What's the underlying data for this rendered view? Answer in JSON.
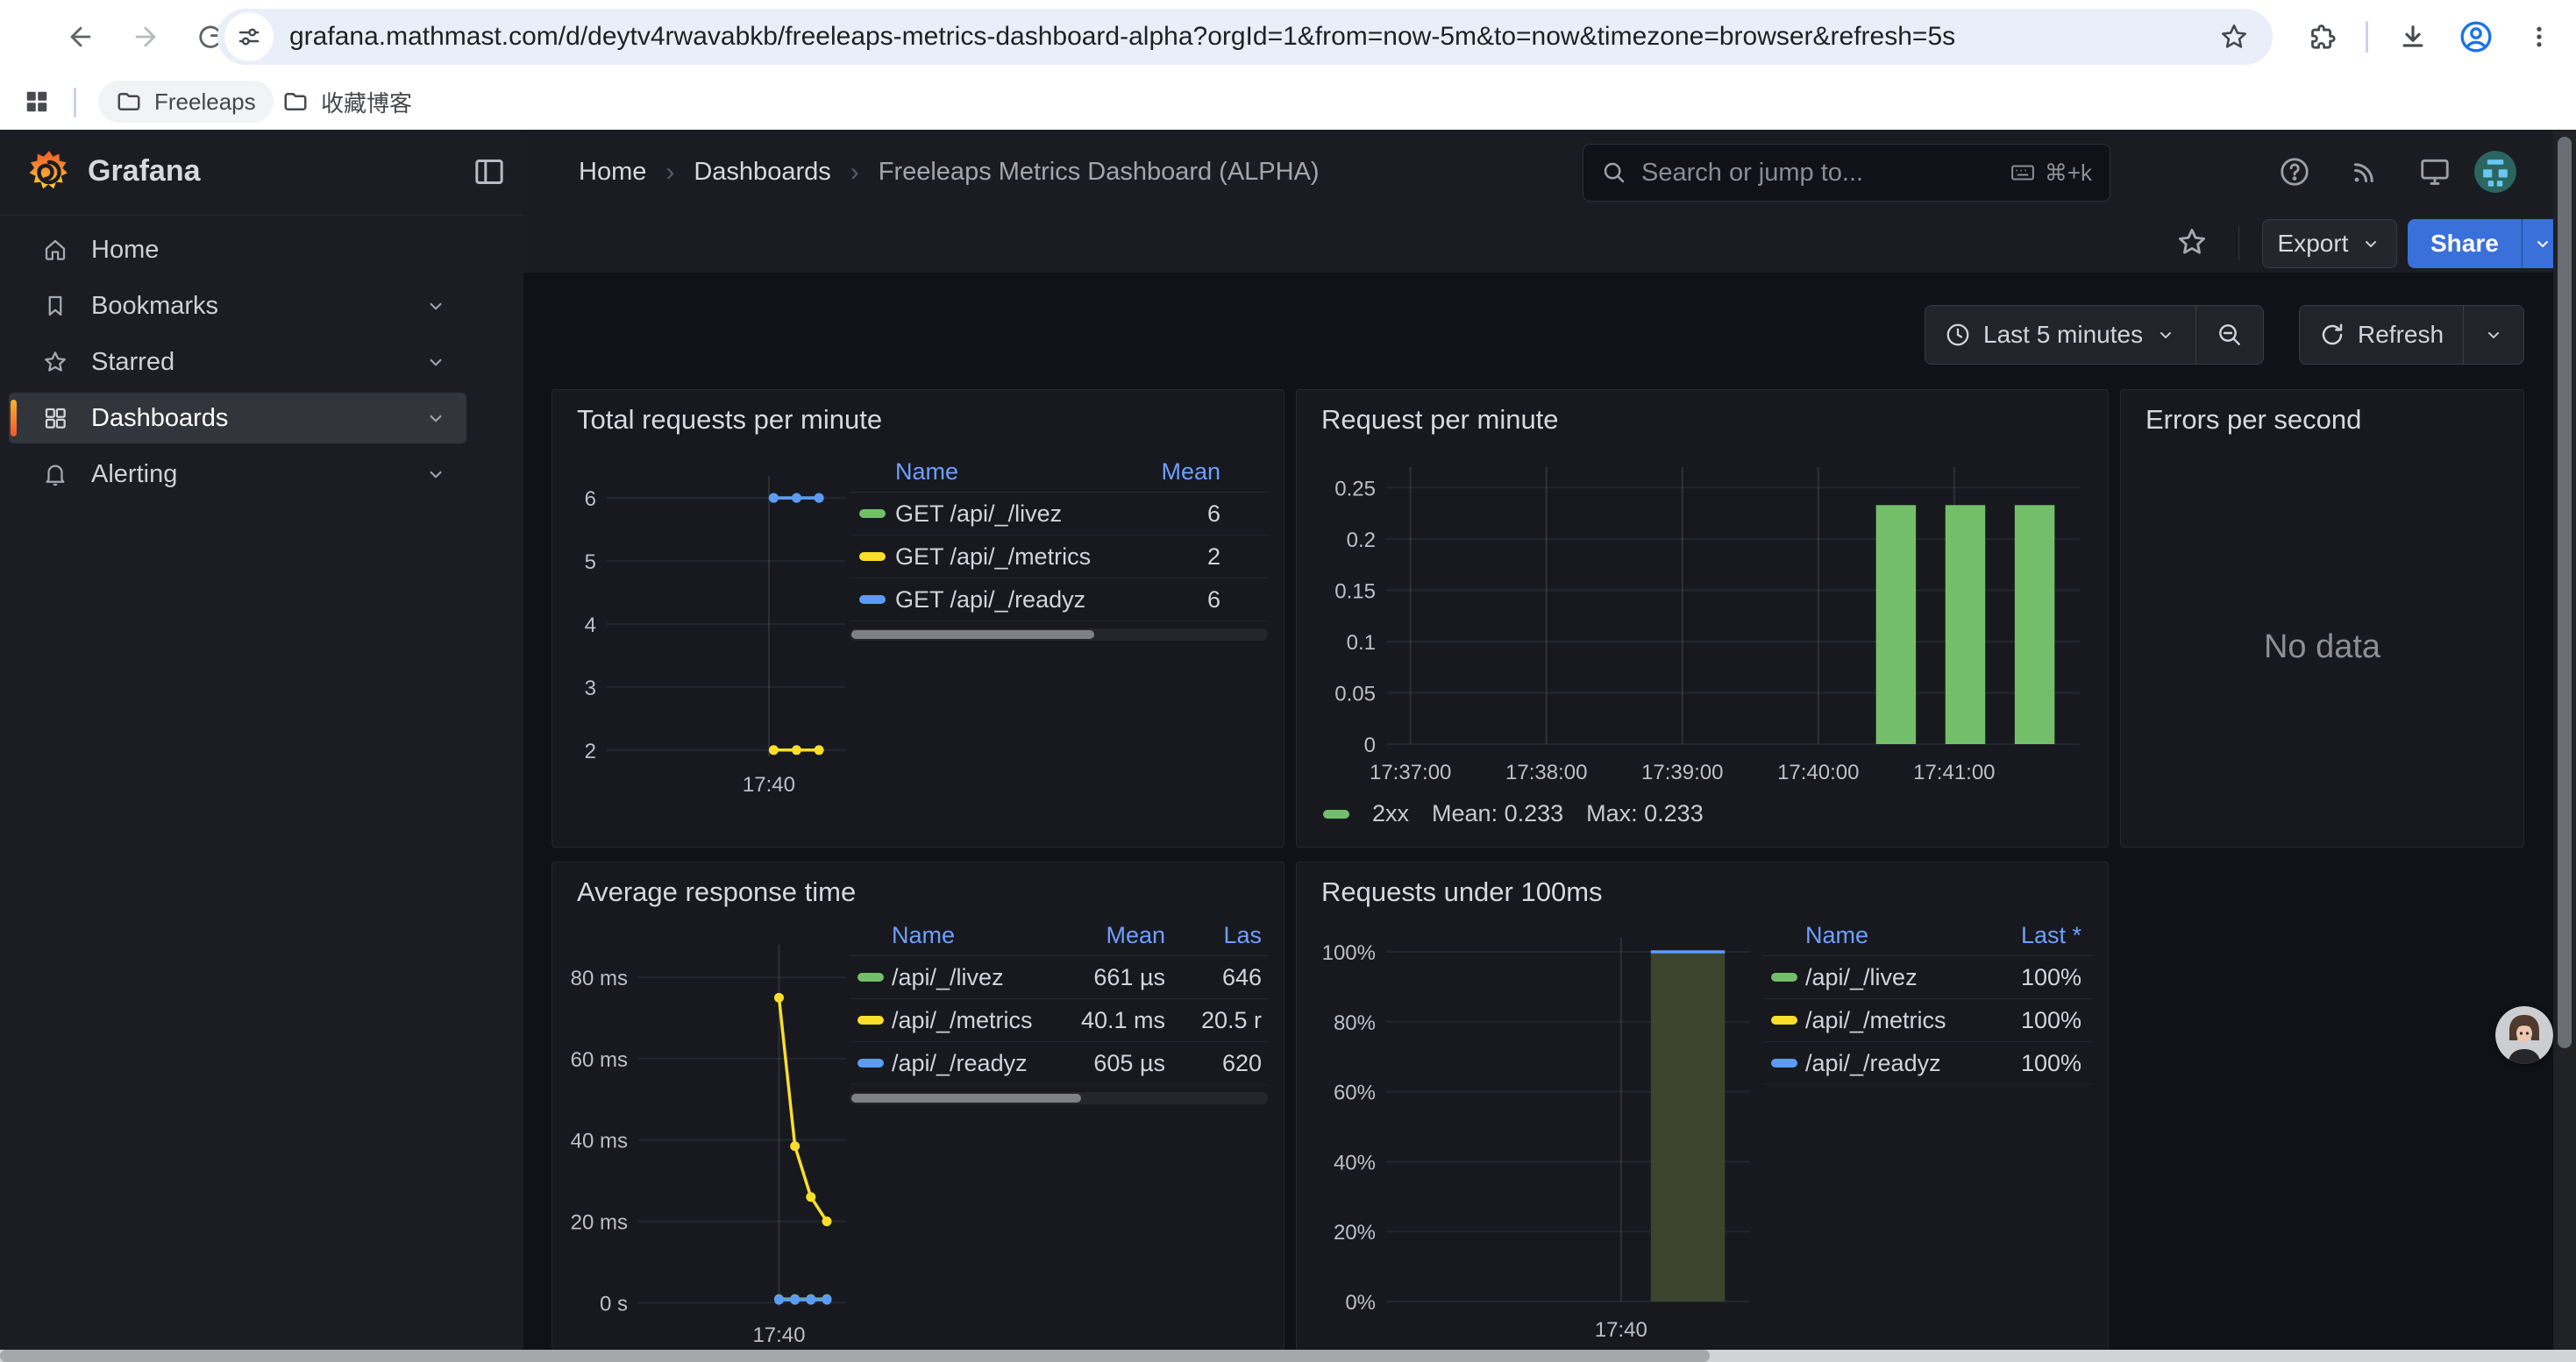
{
  "browser": {
    "url": "grafana.mathmast.com/d/deytv4rwavabkb/freeleaps-metrics-dashboard-alpha?orgId=1&from=now-5m&to=now&timezone=browser&refresh=5s",
    "bookmarks": [
      {
        "label": "Freeleaps"
      },
      {
        "label": "收藏博客"
      }
    ]
  },
  "sidebar": {
    "brand": "Grafana",
    "items": [
      {
        "label": "Home"
      },
      {
        "label": "Bookmarks"
      },
      {
        "label": "Starred"
      },
      {
        "label": "Dashboards"
      },
      {
        "label": "Alerting"
      }
    ]
  },
  "topnav": {
    "breadcrumbs": [
      "Home",
      "Dashboards",
      "Freeleaps Metrics Dashboard (ALPHA)"
    ],
    "search_placeholder": "Search or jump to...",
    "search_shortcut": "⌘+k"
  },
  "toolbar": {
    "export_label": "Export",
    "share_label": "Share"
  },
  "timebar": {
    "range_label": "Last 5 minutes",
    "refresh_label": "Refresh"
  },
  "panels": [
    {
      "title": "Total requests per minute",
      "legend": {
        "cols": [
          "Name",
          "Mean"
        ],
        "rows": [
          {
            "color": "#73BF69",
            "name": "GET /api/_/livez",
            "mean": "6"
          },
          {
            "color": "#FADE2A",
            "name": "GET /api/_/metrics",
            "mean": "2"
          },
          {
            "color": "#5B9BF5",
            "name": "GET /api/_/readyz",
            "mean": "6"
          }
        ]
      },
      "chart_data": {
        "type": "line",
        "ml": 44,
        "mr": 6,
        "mt": 26,
        "mb": 54,
        "ylim": [
          1.9,
          6.35
        ],
        "yticks": [
          {
            "v": 2,
            "l": "2"
          },
          {
            "v": 3,
            "l": "3"
          },
          {
            "v": 4,
            "l": "4"
          },
          {
            "v": 5,
            "l": "5"
          },
          {
            "v": 6,
            "l": "6"
          }
        ],
        "xticks": [
          {
            "f": 0.68,
            "l": "17:40"
          }
        ],
        "vgrid": [
          0.68
        ],
        "series": [
          {
            "name": "GET /api/_/livez",
            "color": "#73BF69",
            "points": [
              {
                "f": 0.7,
                "v": 6
              },
              {
                "f": 0.796,
                "v": 6
              },
              {
                "f": 0.89,
                "v": 6
              }
            ]
          },
          {
            "name": "GET /api/_/metrics",
            "color": "#FADE2A",
            "points": [
              {
                "f": 0.7,
                "v": 2
              },
              {
                "f": 0.796,
                "v": 2
              },
              {
                "f": 0.89,
                "v": 2
              }
            ]
          },
          {
            "name": "GET /api/_/readyz",
            "color": "#5B9BF5",
            "points": [
              {
                "f": 0.7,
                "v": 6
              },
              {
                "f": 0.796,
                "v": 6
              },
              {
                "f": 0.89,
                "v": 6
              }
            ]
          }
        ]
      }
    },
    {
      "title": "Request per minute",
      "legend": {
        "color": "#73BF69",
        "name": "2xx",
        "mean": "Mean: 0.233",
        "max": "Max: 0.233"
      },
      "chart_data": {
        "type": "bars",
        "ml": 86,
        "mr": 16,
        "mt": 22,
        "mb": 58,
        "ylim": [
          0,
          0.27
        ],
        "yticks": [
          {
            "v": 0,
            "l": "0"
          },
          {
            "v": 0.05,
            "l": "0.05"
          },
          {
            "v": 0.1,
            "l": "0.1"
          },
          {
            "v": 0.15,
            "l": "0.15"
          },
          {
            "v": 0.2,
            "l": "0.2"
          },
          {
            "v": 0.25,
            "l": "0.25"
          }
        ],
        "xticks": [
          {
            "f": 0.035,
            "l": "17:37:00"
          },
          {
            "f": 0.231,
            "l": "17:38:00"
          },
          {
            "f": 0.427,
            "l": "17:39:00"
          },
          {
            "f": 0.623,
            "l": "17:40:00"
          },
          {
            "f": 0.819,
            "l": "17:41:00"
          }
        ],
        "vgrid": [
          0.035,
          0.231,
          0.427,
          0.623,
          0.819
        ],
        "bar_color": "#73BF69",
        "bar_w": 0.0575,
        "bars": [
          {
            "f": 0.735,
            "v": 0.233
          },
          {
            "f": 0.835,
            "v": 0.233
          },
          {
            "f": 0.935,
            "v": 0.233
          }
        ]
      }
    },
    {
      "title": "Errors per second",
      "no_data": "No data"
    },
    {
      "title": "Average response time",
      "legend": {
        "cols": [
          "Name",
          "Mean",
          "Las"
        ],
        "rows": [
          {
            "color": "#73BF69",
            "name": "/api/_/livez",
            "mean": "661 µs",
            "last": "646"
          },
          {
            "color": "#FADE2A",
            "name": "/api/_/metrics",
            "mean": "40.1 ms",
            "last": "20.5 r"
          },
          {
            "color": "#5B9BF5",
            "name": "/api/_/readyz",
            "mean": "605 µs",
            "last": "620"
          }
        ]
      },
      "chart_data": {
        "type": "line",
        "ml": 80,
        "mr": 6,
        "mt": 32,
        "mb": 50,
        "ylim": [
          -1,
          88
        ],
        "yticks": [
          {
            "v": 0,
            "l": "0 s"
          },
          {
            "v": 20,
            "l": "20 ms"
          },
          {
            "v": 40,
            "l": "40 ms"
          },
          {
            "v": 60,
            "l": "60 ms"
          },
          {
            "v": 80,
            "l": "80 ms"
          }
        ],
        "xticks": [
          {
            "f": 0.68,
            "l": "17:40"
          }
        ],
        "vgrid": [
          0.68
        ],
        "series": [
          {
            "name": "/api/_/livez",
            "color": "#73BF69",
            "points": [
              {
                "f": 0.68,
                "v": 0.9
              },
              {
                "f": 0.757,
                "v": 0.9
              },
              {
                "f": 0.834,
                "v": 0.9
              },
              {
                "f": 0.911,
                "v": 0.9
              }
            ]
          },
          {
            "name": "/api/_/readyz",
            "color": "#5B9BF5",
            "points": [
              {
                "f": 0.68,
                "v": 0.7
              },
              {
                "f": 0.757,
                "v": 0.7
              },
              {
                "f": 0.834,
                "v": 0.7
              },
              {
                "f": 0.911,
                "v": 0.7
              }
            ]
          },
          {
            "name": "/api/_/metrics",
            "color": "#FADE2A",
            "points": [
              {
                "f": 0.68,
                "v": 75
              },
              {
                "f": 0.757,
                "v": 38.5
              },
              {
                "f": 0.834,
                "v": 26
              },
              {
                "f": 0.911,
                "v": 20
              }
            ]
          }
        ]
      }
    },
    {
      "title": "Requests under 100ms",
      "legend": {
        "cols": [
          "Name",
          "Last *"
        ],
        "rows": [
          {
            "color": "#73BF69",
            "name": "/api/_/livez",
            "last": "100%"
          },
          {
            "color": "#FADE2A",
            "name": "/api/_/metrics",
            "last": "100%"
          },
          {
            "color": "#5B9BF5",
            "name": "/api/_/readyz",
            "last": "100%"
          }
        ]
      },
      "chart_data": {
        "type": "area",
        "ml": 86,
        "mr": 20,
        "mt": 24,
        "mb": 56,
        "ylim": [
          0,
          104
        ],
        "yticks": [
          {
            "v": 0,
            "l": "0%"
          },
          {
            "v": 20,
            "l": "20%"
          },
          {
            "v": 40,
            "l": "40%"
          },
          {
            "v": 60,
            "l": "60%"
          },
          {
            "v": 80,
            "l": "80%"
          },
          {
            "v": 100,
            "l": "100%"
          }
        ],
        "xticks": [
          {
            "f": 0.647,
            "l": "17:40"
          }
        ],
        "vgrid": [
          0.647
        ],
        "area": {
          "from": 0.729,
          "to": 0.933,
          "v": 100,
          "fill": "#3d442e",
          "line": "#5B9BF5"
        }
      }
    }
  ],
  "colors": {
    "accent_blue": "#3a70d9",
    "green": "#73BF69",
    "yellow": "#FADE2A",
    "blue": "#5B9BF5",
    "header_blue": "#6e9fff"
  }
}
